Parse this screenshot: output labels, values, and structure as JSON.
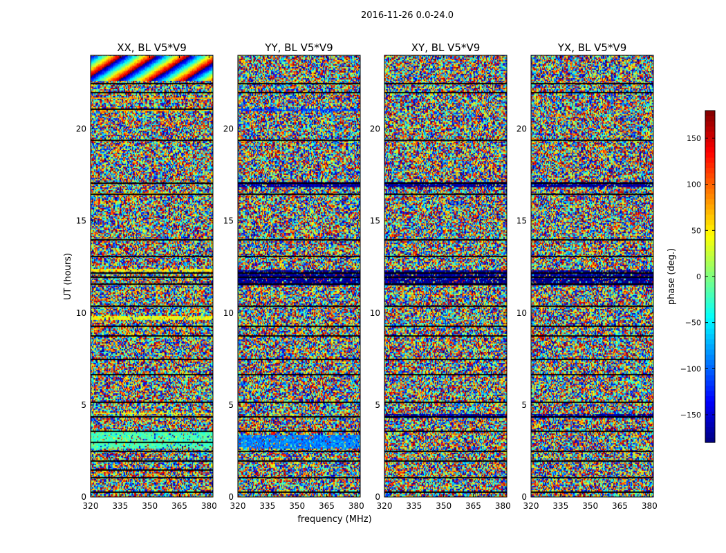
{
  "figure": {
    "suptitle": "2016-11-26 0.0-24.0"
  },
  "chart_data": [
    {
      "type": "heatmap",
      "title": "XX, BL V5*V9",
      "ylabel": "UT (hours)",
      "xlim": [
        320,
        382
      ],
      "ylim": [
        0,
        24
      ],
      "xticks": [
        320,
        335,
        350,
        365,
        380
      ],
      "yticks": [
        0,
        5,
        10,
        15,
        20
      ],
      "ytick_labels": [
        "0",
        "5",
        "10",
        "15",
        "20"
      ],
      "value_range": [
        -180,
        180
      ],
      "flagged_rows_ut": [
        0.3,
        1.1,
        1.5,
        2.0,
        2.5,
        3.0,
        3.6,
        4.4,
        5.2,
        6.7,
        7.5,
        8.8,
        9.3,
        10.4,
        11.6,
        12.0,
        12.2,
        13.1,
        14.0,
        16.5,
        17.1,
        19.4,
        21.1,
        22.0,
        22.5
      ],
      "banded_rows": [
        {
          "ut": [
            2.6,
            3.5
          ],
          "phase": -20
        },
        {
          "ut": [
            4.5,
            4.6
          ],
          "phase": 45
        },
        {
          "ut": [
            9.6,
            9.8
          ],
          "phase": 40
        },
        {
          "ut": [
            12.2,
            12.35
          ],
          "phase": 50
        },
        {
          "ut": [
            16.4,
            16.5
          ],
          "phase": 60
        },
        {
          "ut": [
            20.9,
            21.1
          ],
          "phase": 70
        },
        {
          "ut": [
            21.6,
            21.7
          ],
          "phase": 80
        }
      ],
      "fringe_region_ut": [
        22.6,
        23.9
      ]
    },
    {
      "type": "heatmap",
      "title": "YY, BL V5*V9",
      "xlabel": "frequency (MHz)",
      "xlim": [
        320,
        382
      ],
      "ylim": [
        0,
        24
      ],
      "xticks": [
        320,
        335,
        350,
        365,
        380
      ],
      "yticks": [
        0,
        5,
        10,
        15,
        20
      ],
      "ytick_labels": [
        "0",
        "5",
        "10",
        "15",
        "20"
      ],
      "value_range": [
        -180,
        180
      ],
      "flagged_rows_ut": [
        0.3,
        1.1,
        2.0,
        2.5,
        3.6,
        4.4,
        5.2,
        6.7,
        7.5,
        8.8,
        9.3,
        10.4,
        11.6,
        12.0,
        12.2,
        13.1,
        14.0,
        16.5,
        17.1,
        19.4,
        22.0,
        22.5
      ],
      "banded_rows": [
        {
          "ut": [
            2.6,
            3.4
          ],
          "phase": -90
        },
        {
          "ut": [
            11.5,
            12.3
          ],
          "phase": -175
        },
        {
          "ut": [
            20.9,
            21.1
          ],
          "phase": -110
        },
        {
          "ut": [
            16.8,
            17.1
          ],
          "phase": -170
        }
      ],
      "fringe_region_ut": []
    },
    {
      "type": "heatmap",
      "title": "XY, BL V5*V9",
      "xlim": [
        320,
        382
      ],
      "ylim": [
        0,
        24
      ],
      "xticks": [
        320,
        335,
        350,
        365,
        380
      ],
      "yticks": [
        0,
        5,
        10,
        15,
        20
      ],
      "ytick_labels": [
        "0",
        "5",
        "10",
        "15",
        "20"
      ],
      "value_range": [
        -180,
        180
      ],
      "flagged_rows_ut": [
        0.3,
        1.1,
        2.0,
        2.5,
        3.6,
        4.4,
        5.2,
        6.7,
        7.5,
        8.8,
        9.3,
        10.4,
        11.6,
        12.0,
        12.2,
        13.1,
        14.0,
        16.5,
        17.1,
        19.4,
        22.0,
        22.5
      ],
      "banded_rows": [
        {
          "ut": [
            11.5,
            12.3
          ],
          "phase": -175
        },
        {
          "ut": [
            16.8,
            17.1
          ],
          "phase": -170
        },
        {
          "ut": [
            4.3,
            4.5
          ],
          "phase": -170
        }
      ],
      "fringe_region_ut": []
    },
    {
      "type": "heatmap",
      "title": "YX, BL V5*V9",
      "xlim": [
        320,
        382
      ],
      "ylim": [
        0,
        24
      ],
      "xticks": [
        320,
        335,
        350,
        365,
        380
      ],
      "yticks": [
        0,
        5,
        10,
        15,
        20
      ],
      "ytick_labels": [
        "0",
        "5",
        "10",
        "15",
        "20"
      ],
      "value_range": [
        -180,
        180
      ],
      "flagged_rows_ut": [
        0.3,
        1.1,
        2.0,
        2.5,
        3.6,
        4.4,
        5.2,
        6.7,
        7.5,
        8.8,
        9.3,
        10.4,
        11.6,
        12.0,
        12.2,
        13.1,
        14.0,
        16.5,
        17.1,
        19.4,
        22.0,
        22.5
      ],
      "banded_rows": [
        {
          "ut": [
            11.5,
            12.3
          ],
          "phase": -175
        },
        {
          "ut": [
            16.8,
            17.1
          ],
          "phase": -170
        },
        {
          "ut": [
            4.3,
            4.5
          ],
          "phase": -170
        }
      ],
      "fringe_region_ut": []
    }
  ],
  "colorbar": {
    "label": "phase (deg.)",
    "range": [
      -180,
      180
    ],
    "ticks": [
      150,
      100,
      50,
      0,
      -50,
      -100,
      -150
    ],
    "tick_labels": [
      "150",
      "100",
      "50",
      "0",
      "−50",
      "−100",
      "−150"
    ],
    "colormap": "jet"
  }
}
